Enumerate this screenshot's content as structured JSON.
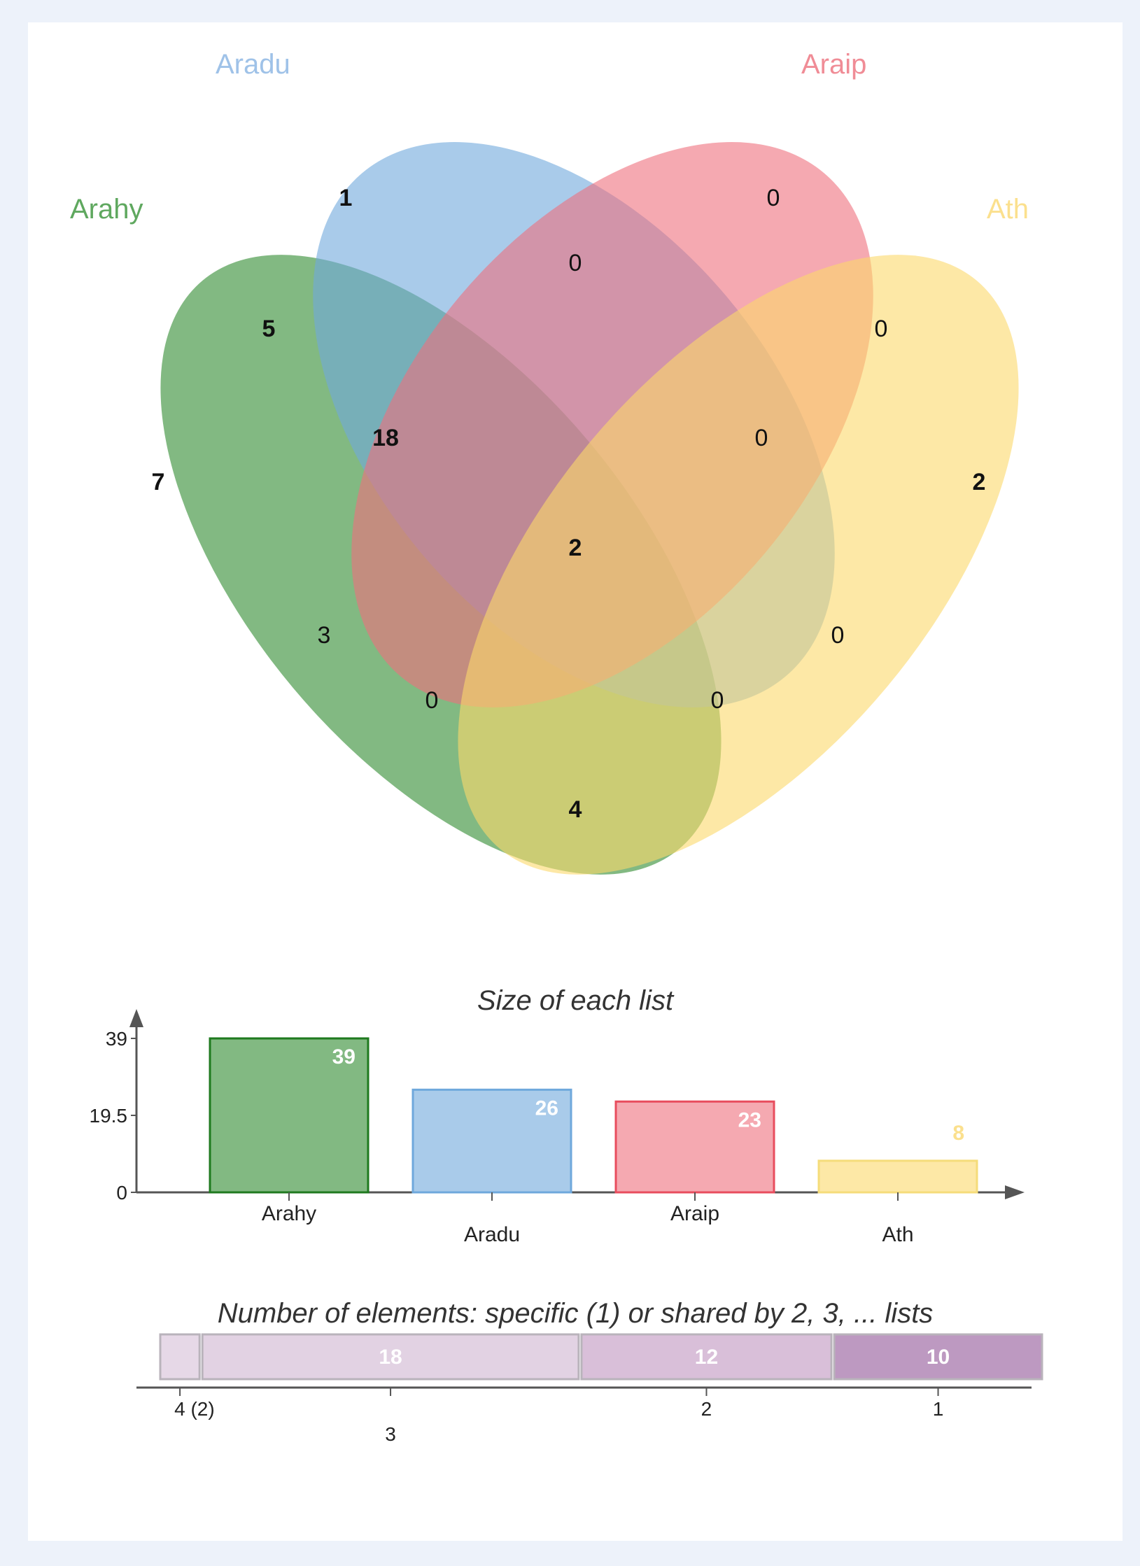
{
  "colors": {
    "Arahy": "#2e8b2e",
    "Aradu": "#6fa8dc",
    "Araip": "#ef6f7d",
    "Ath": "#fcd96a",
    "bar_stroke": {
      "Arahy": "#1f7a1f",
      "Aradu": "#6fa8dc",
      "Araip": "#e84d5e",
      "Ath": "#f5dc7a"
    },
    "label": {
      "Arahy": "#5fa85f",
      "Aradu": "#9fc2e8",
      "Araip": "#f08c96",
      "Ath": "#fbe08e"
    },
    "value_label": {
      "Arahy": "#ffffff",
      "Aradu": "#ffffff",
      "Araip": "#ffffff",
      "Ath": "#fbe08e"
    },
    "segments": [
      "#e6d8e7",
      "#e2d2e3",
      "#d9bfd9",
      "#bd99c1"
    ]
  },
  "venn": {
    "sets": [
      "Arahy",
      "Aradu",
      "Araip",
      "Ath"
    ],
    "regions": [
      {
        "sets": [
          "Arahy"
        ],
        "count": "7"
      },
      {
        "sets": [
          "Aradu"
        ],
        "count": "1"
      },
      {
        "sets": [
          "Araip"
        ],
        "count": "0"
      },
      {
        "sets": [
          "Ath"
        ],
        "count": "2"
      },
      {
        "sets": [
          "Arahy",
          "Aradu"
        ],
        "count": "5"
      },
      {
        "sets": [
          "Aradu",
          "Araip"
        ],
        "count": "0"
      },
      {
        "sets": [
          "Araip",
          "Ath"
        ],
        "count": "0"
      },
      {
        "sets": [
          "Arahy",
          "Aradu",
          "Araip"
        ],
        "count": "18"
      },
      {
        "sets": [
          "Aradu",
          "Araip",
          "Ath"
        ],
        "count": "0"
      },
      {
        "sets": [
          "Arahy",
          "Aradu",
          "Araip",
          "Ath"
        ],
        "count": "2"
      },
      {
        "sets": [
          "Arahy",
          "Araip"
        ],
        "count": "3"
      },
      {
        "sets": [
          "Aradu",
          "Ath"
        ],
        "count": "0"
      },
      {
        "sets": [
          "Arahy",
          "Araip",
          "Ath"
        ],
        "count": "0"
      },
      {
        "sets": [
          "Arahy",
          "Aradu",
          "Ath"
        ],
        "count": "0"
      },
      {
        "sets": [
          "Arahy",
          "Ath"
        ],
        "count": "4"
      }
    ]
  },
  "chart_data": [
    {
      "type": "bar",
      "title": "Size of each list",
      "categories": [
        "Arahy",
        "Aradu",
        "Araip",
        "Ath"
      ],
      "values": [
        39,
        26,
        23,
        8
      ],
      "yticks": [
        "0",
        "19.5",
        "39"
      ],
      "ylim": [
        0,
        39
      ],
      "xlabel": "",
      "ylabel": "",
      "grid": false
    },
    {
      "type": "bar",
      "title": "Number of elements: specific (1) or shared by 2, 3, ... lists",
      "orientation": "stacked-horizontal",
      "categories": [
        "4 (2)",
        "3",
        "2",
        "1"
      ],
      "values": [
        2,
        18,
        12,
        10
      ],
      "segment_labels": [
        "",
        "18",
        "12",
        "10"
      ]
    }
  ]
}
